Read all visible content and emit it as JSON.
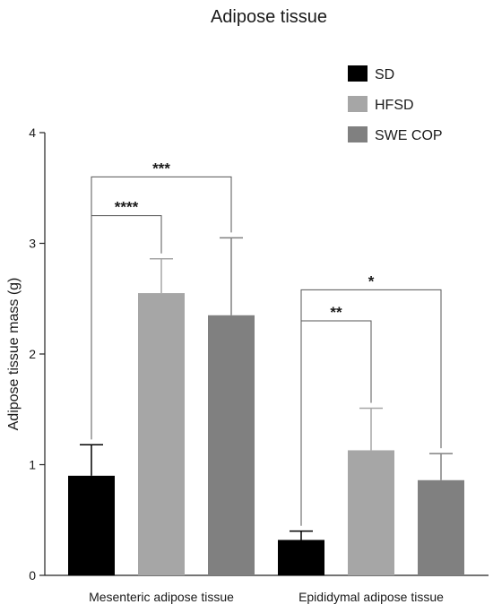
{
  "chart_data": {
    "type": "bar",
    "title": "Adipose tissue",
    "xlabel": "",
    "ylabel": "Adipose tissue mass (g)",
    "ylim": [
      0,
      4
    ],
    "yticks": [
      "0",
      "1",
      "2",
      "3",
      "4"
    ],
    "grid": false,
    "legend_position": "top-right",
    "categories": [
      "Mesenteric adipose tissue",
      "Epididymal adipose tissue"
    ],
    "series": [
      {
        "name": "SD",
        "color": "#000000",
        "values": [
          0.9,
          0.32
        ],
        "errors": [
          0.28,
          0.08
        ]
      },
      {
        "name": "HFSD",
        "color": "#a6a6a6",
        "values": [
          2.55,
          1.13
        ],
        "errors": [
          0.31,
          0.38
        ]
      },
      {
        "name": "SWE COP",
        "color": "#808080",
        "values": [
          2.35,
          0.86
        ],
        "errors": [
          0.7,
          0.24
        ]
      }
    ],
    "significance": [
      {
        "category": 0,
        "from": "SD",
        "to": "HFSD",
        "label": "****",
        "level": 3.25
      },
      {
        "category": 0,
        "from": "SD",
        "to": "SWE COP",
        "label": "***",
        "level": 3.6
      },
      {
        "category": 1,
        "from": "SD",
        "to": "HFSD",
        "label": "**",
        "level": 2.3
      },
      {
        "category": 1,
        "from": "SD",
        "to": "SWE COP",
        "label": "*",
        "level": 2.58
      }
    ]
  }
}
